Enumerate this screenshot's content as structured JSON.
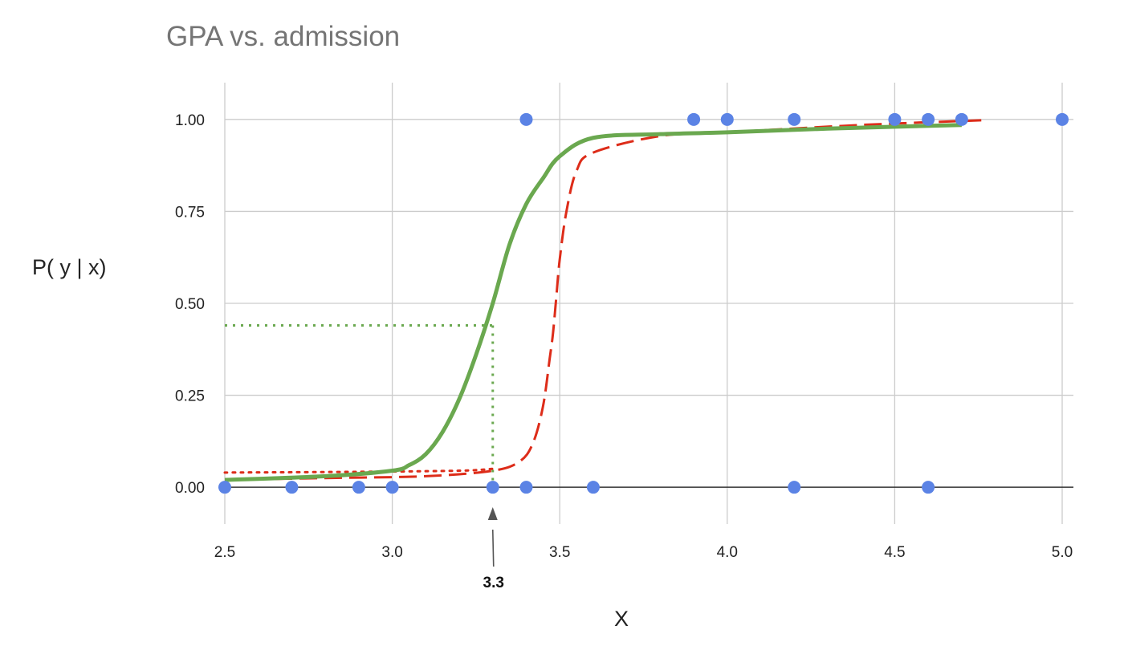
{
  "chart_data": {
    "type": "scatter",
    "title": "GPA vs. admission",
    "xlabel": "X",
    "ylabel": "P( y | x)",
    "xlim": [
      2.5,
      5.0
    ],
    "ylim": [
      -0.1,
      1.1
    ],
    "x_ticks": [
      "2.5",
      "3.0",
      "3.5",
      "4.0",
      "4.5",
      "5.0"
    ],
    "y_ticks": [
      "0.00",
      "0.25",
      "0.50",
      "0.75",
      "1.00"
    ],
    "grid": true,
    "colors": {
      "points": "#5b83e5",
      "green_curve": "#6aa84f",
      "red_curve": "#dd2c19",
      "annotation_arrow": "#555555"
    },
    "series": [
      {
        "kind": "points",
        "x": [
          2.5,
          2.7,
          2.9,
          3.0,
          3.3,
          3.4,
          3.6,
          4.2,
          4.6,
          3.4,
          3.9,
          4.0,
          4.2,
          4.5,
          4.6,
          4.7,
          5.0
        ],
        "y": [
          0,
          0,
          0,
          0,
          0,
          0,
          0,
          0,
          0,
          1,
          1,
          1,
          1,
          1,
          1,
          1,
          1
        ]
      },
      {
        "kind": "curve",
        "style": "solid",
        "color": "green",
        "x": [
          2.5,
          2.8,
          3.0,
          3.05,
          3.1,
          3.15,
          3.2,
          3.25,
          3.3,
          3.35,
          3.4,
          3.45,
          3.5,
          3.6,
          3.8,
          4.0,
          4.3,
          4.7
        ],
        "y": [
          0.02,
          0.03,
          0.045,
          0.06,
          0.09,
          0.15,
          0.24,
          0.36,
          0.5,
          0.66,
          0.77,
          0.84,
          0.9,
          0.95,
          0.96,
          0.965,
          0.975,
          0.985
        ]
      },
      {
        "kind": "curve",
        "style": "dashed",
        "color": "red",
        "x": [
          2.5,
          2.8,
          3.1,
          3.3,
          3.38,
          3.42,
          3.45,
          3.47,
          3.48,
          3.49,
          3.5,
          3.52,
          3.55,
          3.6,
          3.8,
          4.0,
          4.4,
          4.77
        ],
        "y": [
          0.02,
          0.025,
          0.03,
          0.045,
          0.07,
          0.12,
          0.22,
          0.35,
          0.42,
          0.52,
          0.62,
          0.75,
          0.86,
          0.91,
          0.955,
          0.965,
          0.985,
          0.998
        ]
      },
      {
        "kind": "curve",
        "style": "dotted",
        "color": "red",
        "x": [
          2.5,
          2.9,
          3.2,
          3.3
        ],
        "y": [
          0.04,
          0.042,
          0.045,
          0.05
        ]
      }
    ],
    "reference_lines": {
      "x": 3.3,
      "y": 0.44,
      "style": "dotted",
      "color": "green"
    },
    "annotation": {
      "label": "3.3",
      "x": 3.3
    }
  }
}
